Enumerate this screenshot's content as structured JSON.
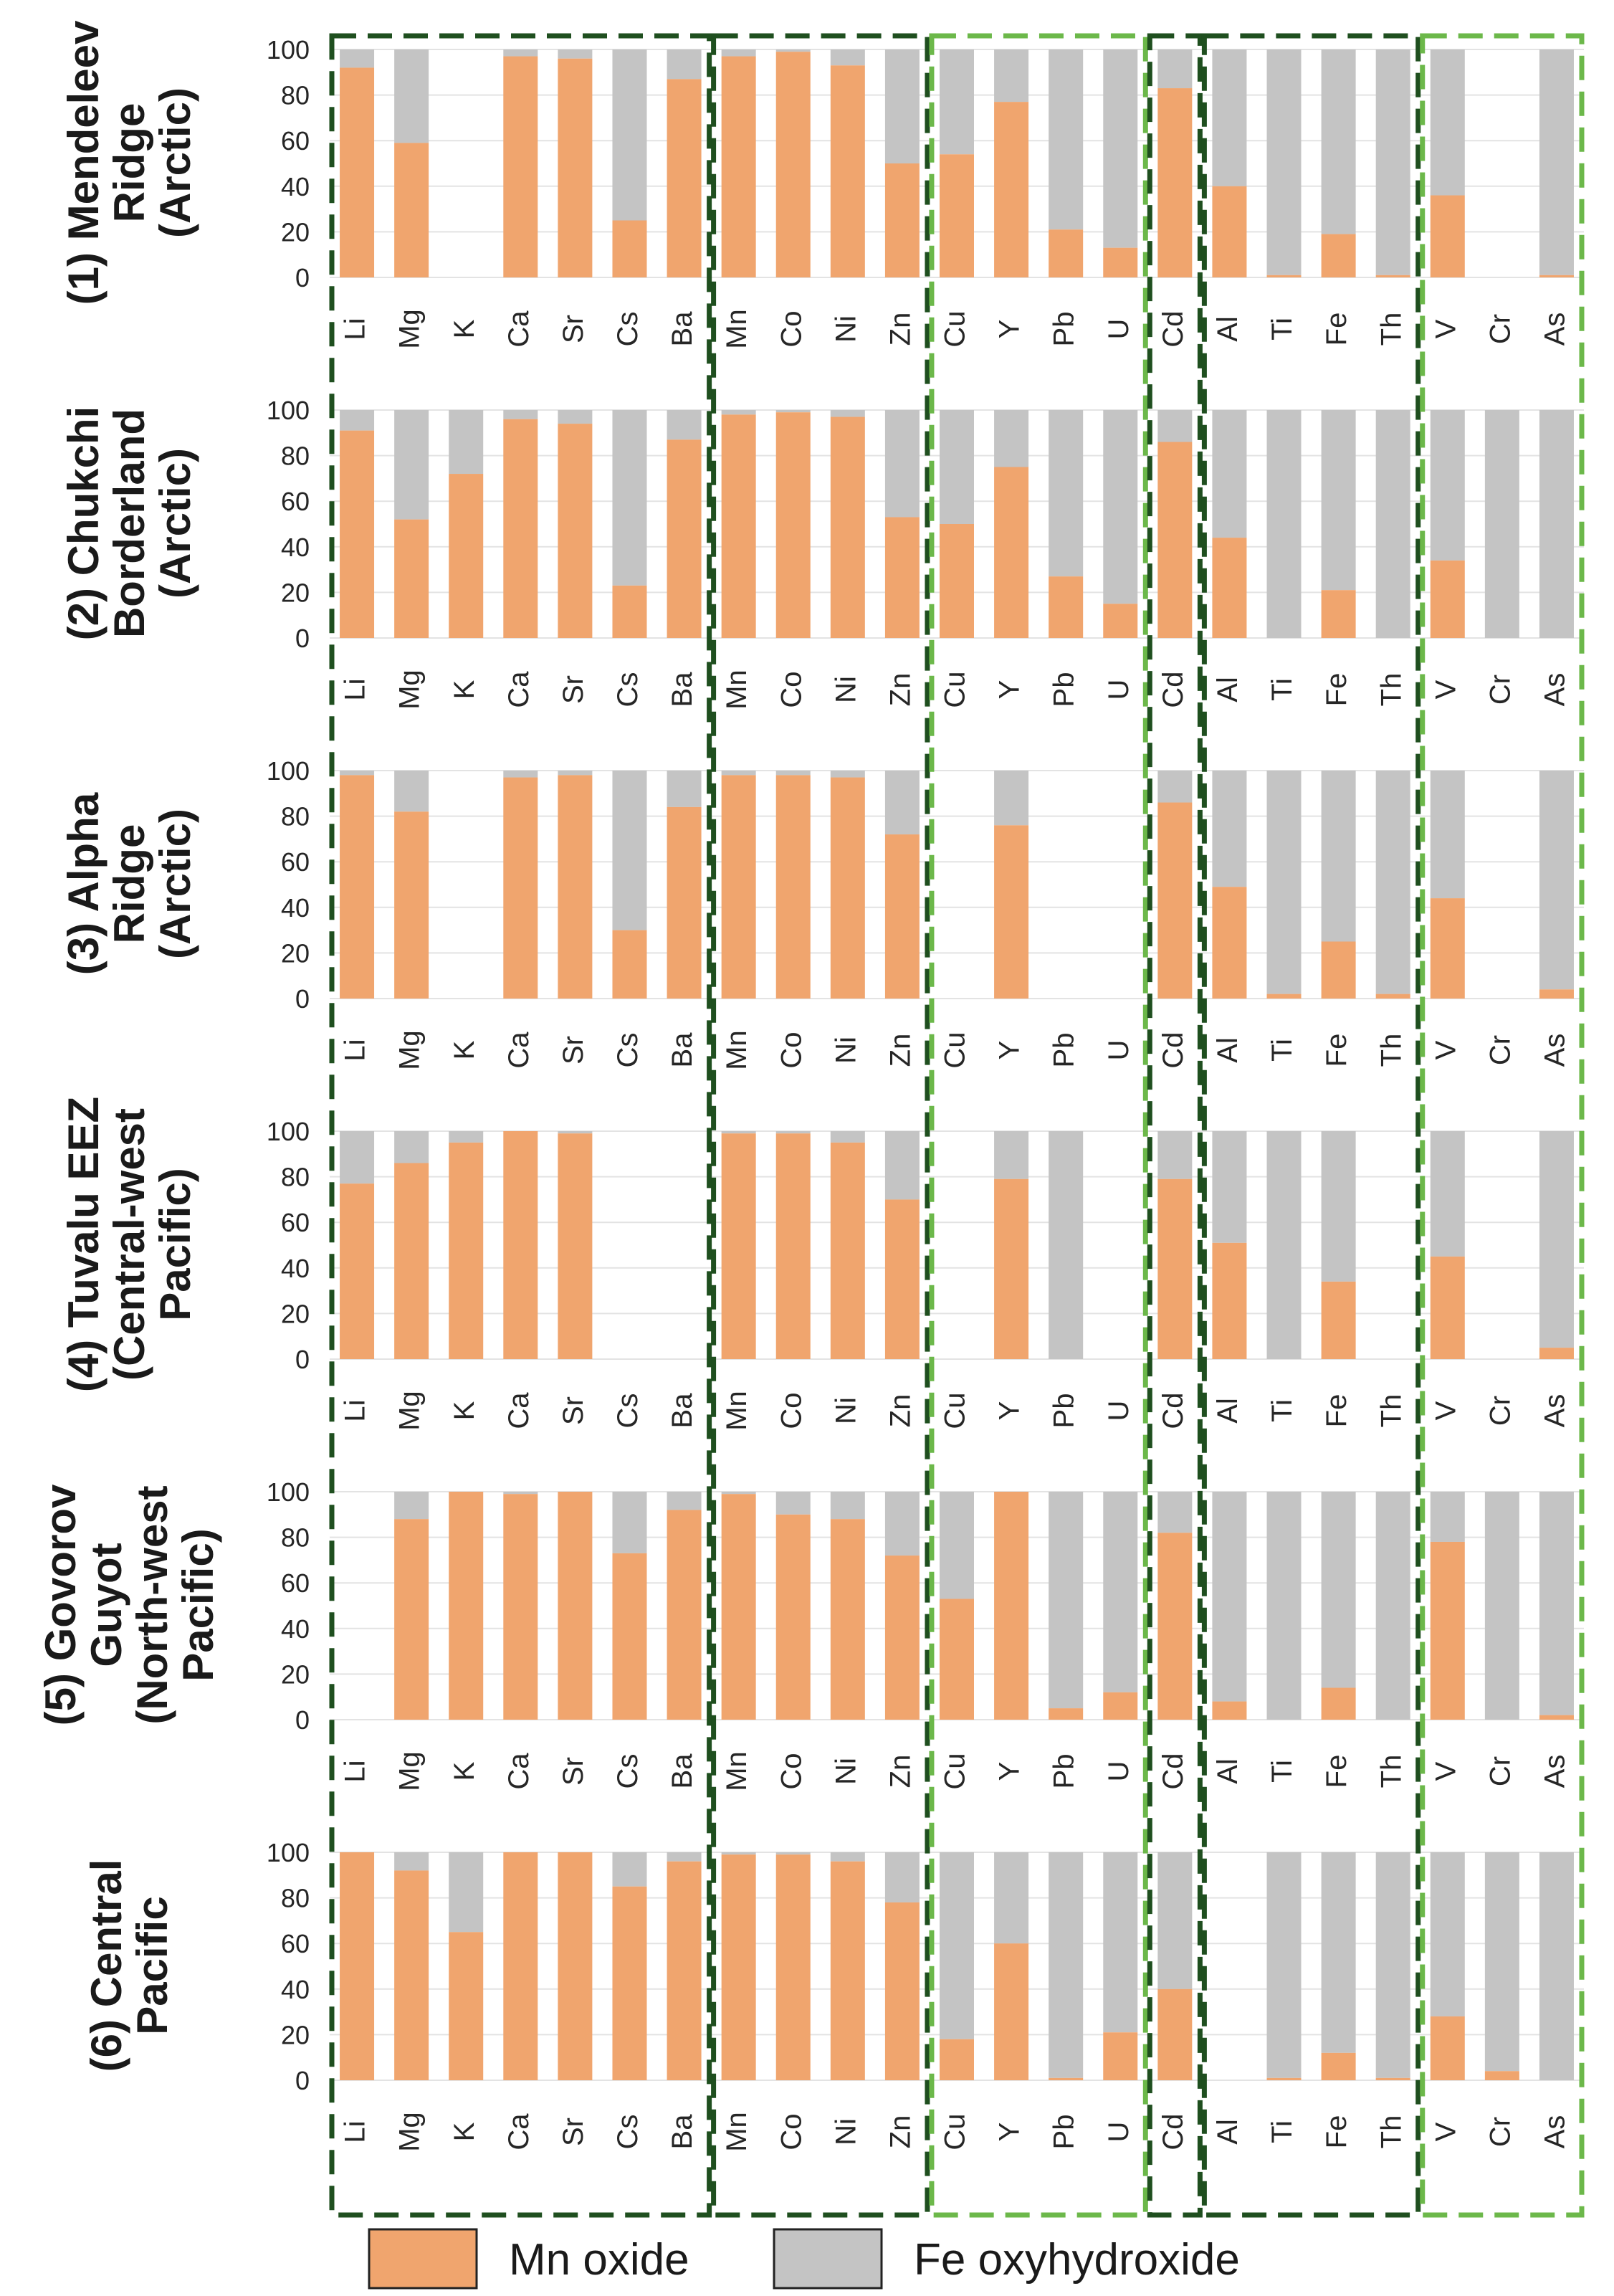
{
  "chart_data": {
    "type": "bar",
    "stacked": true,
    "orientation": "rotated-90-clockwise",
    "value_axis": {
      "range": [
        0,
        100
      ],
      "ticks": [
        0,
        20,
        40,
        60,
        80,
        100
      ]
    },
    "categories": [
      "Li",
      "Mg",
      "K",
      "Ca",
      "Sr",
      "Cs",
      "Ba",
      "Mn",
      "Co",
      "Ni",
      "Zn",
      "Cu",
      "Y",
      "Pb",
      "U",
      "Cd",
      "Al",
      "Ti",
      "Fe",
      "Th",
      "V",
      "Cr",
      "As"
    ],
    "legend": [
      {
        "name": "Mn oxide",
        "color": "#F0A56E"
      },
      {
        "name": "Fe oxyhydroxide",
        "color": "#C4C4C4"
      }
    ],
    "groups": [
      {
        "members": [
          "Li",
          "Mg",
          "K",
          "Ca",
          "Sr",
          "Cs",
          "Ba"
        ],
        "color": "#1F4F1F"
      },
      {
        "members": [
          "Mn",
          "Co",
          "Ni",
          "Zn"
        ],
        "color": "#1F4F1F"
      },
      {
        "members": [
          "Cu",
          "Y",
          "Pb",
          "U"
        ],
        "color": "#6CB84A"
      },
      {
        "members": [
          "Cd"
        ],
        "color": "#1F4F1F"
      },
      {
        "members": [
          "Al",
          "Ti",
          "Fe",
          "Th"
        ],
        "color": "#1F4F1F"
      },
      {
        "members": [
          "V",
          "Cr",
          "As"
        ],
        "color": "#6CB84A"
      }
    ],
    "panels": [
      {
        "label_lines": [
          "(1) Mendeleev",
          "Ridge",
          "(Arctic)"
        ],
        "mn_oxide": [
          92,
          59,
          null,
          97,
          96,
          25,
          87,
          97,
          99,
          93,
          50,
          54,
          77,
          21,
          13,
          83,
          40,
          1,
          19,
          1,
          36,
          null,
          1
        ]
      },
      {
        "label_lines": [
          "(2) Chukchi",
          "Borderland",
          "(Arctic)"
        ],
        "mn_oxide": [
          91,
          52,
          72,
          96,
          94,
          23,
          87,
          98,
          99,
          97,
          53,
          50,
          75,
          27,
          15,
          86,
          44,
          0,
          21,
          0,
          34,
          0,
          0
        ]
      },
      {
        "label_lines": [
          "(3) Alpha",
          "Ridge",
          "(Arctic)"
        ],
        "mn_oxide": [
          98,
          82,
          null,
          97,
          98,
          30,
          84,
          98,
          98,
          97,
          72,
          null,
          76,
          null,
          null,
          86,
          49,
          2,
          25,
          2,
          44,
          null,
          4
        ]
      },
      {
        "label_lines": [
          "(4) Tuvalu EEZ",
          "(Central-west",
          "Pacific)"
        ],
        "mn_oxide": [
          77,
          86,
          95,
          100,
          99,
          null,
          null,
          99,
          99,
          95,
          70,
          null,
          79,
          0,
          null,
          79,
          51,
          0,
          34,
          null,
          45,
          null,
          5
        ]
      },
      {
        "label_lines": [
          "(5) Govorov",
          "Guyot",
          "(North-west",
          "Pacific)"
        ],
        "mn_oxide": [
          null,
          88,
          100,
          99,
          100,
          73,
          92,
          99,
          90,
          88,
          72,
          53,
          100,
          5,
          12,
          82,
          8,
          0,
          14,
          0,
          78,
          0,
          2
        ]
      },
      {
        "label_lines": [
          "(6) Central",
          "Pacific"
        ],
        "mn_oxide": [
          100,
          92,
          65,
          100,
          100,
          85,
          96,
          99,
          99,
          96,
          78,
          18,
          60,
          1,
          21,
          40,
          null,
          1,
          12,
          1,
          28,
          4,
          0
        ]
      }
    ]
  }
}
